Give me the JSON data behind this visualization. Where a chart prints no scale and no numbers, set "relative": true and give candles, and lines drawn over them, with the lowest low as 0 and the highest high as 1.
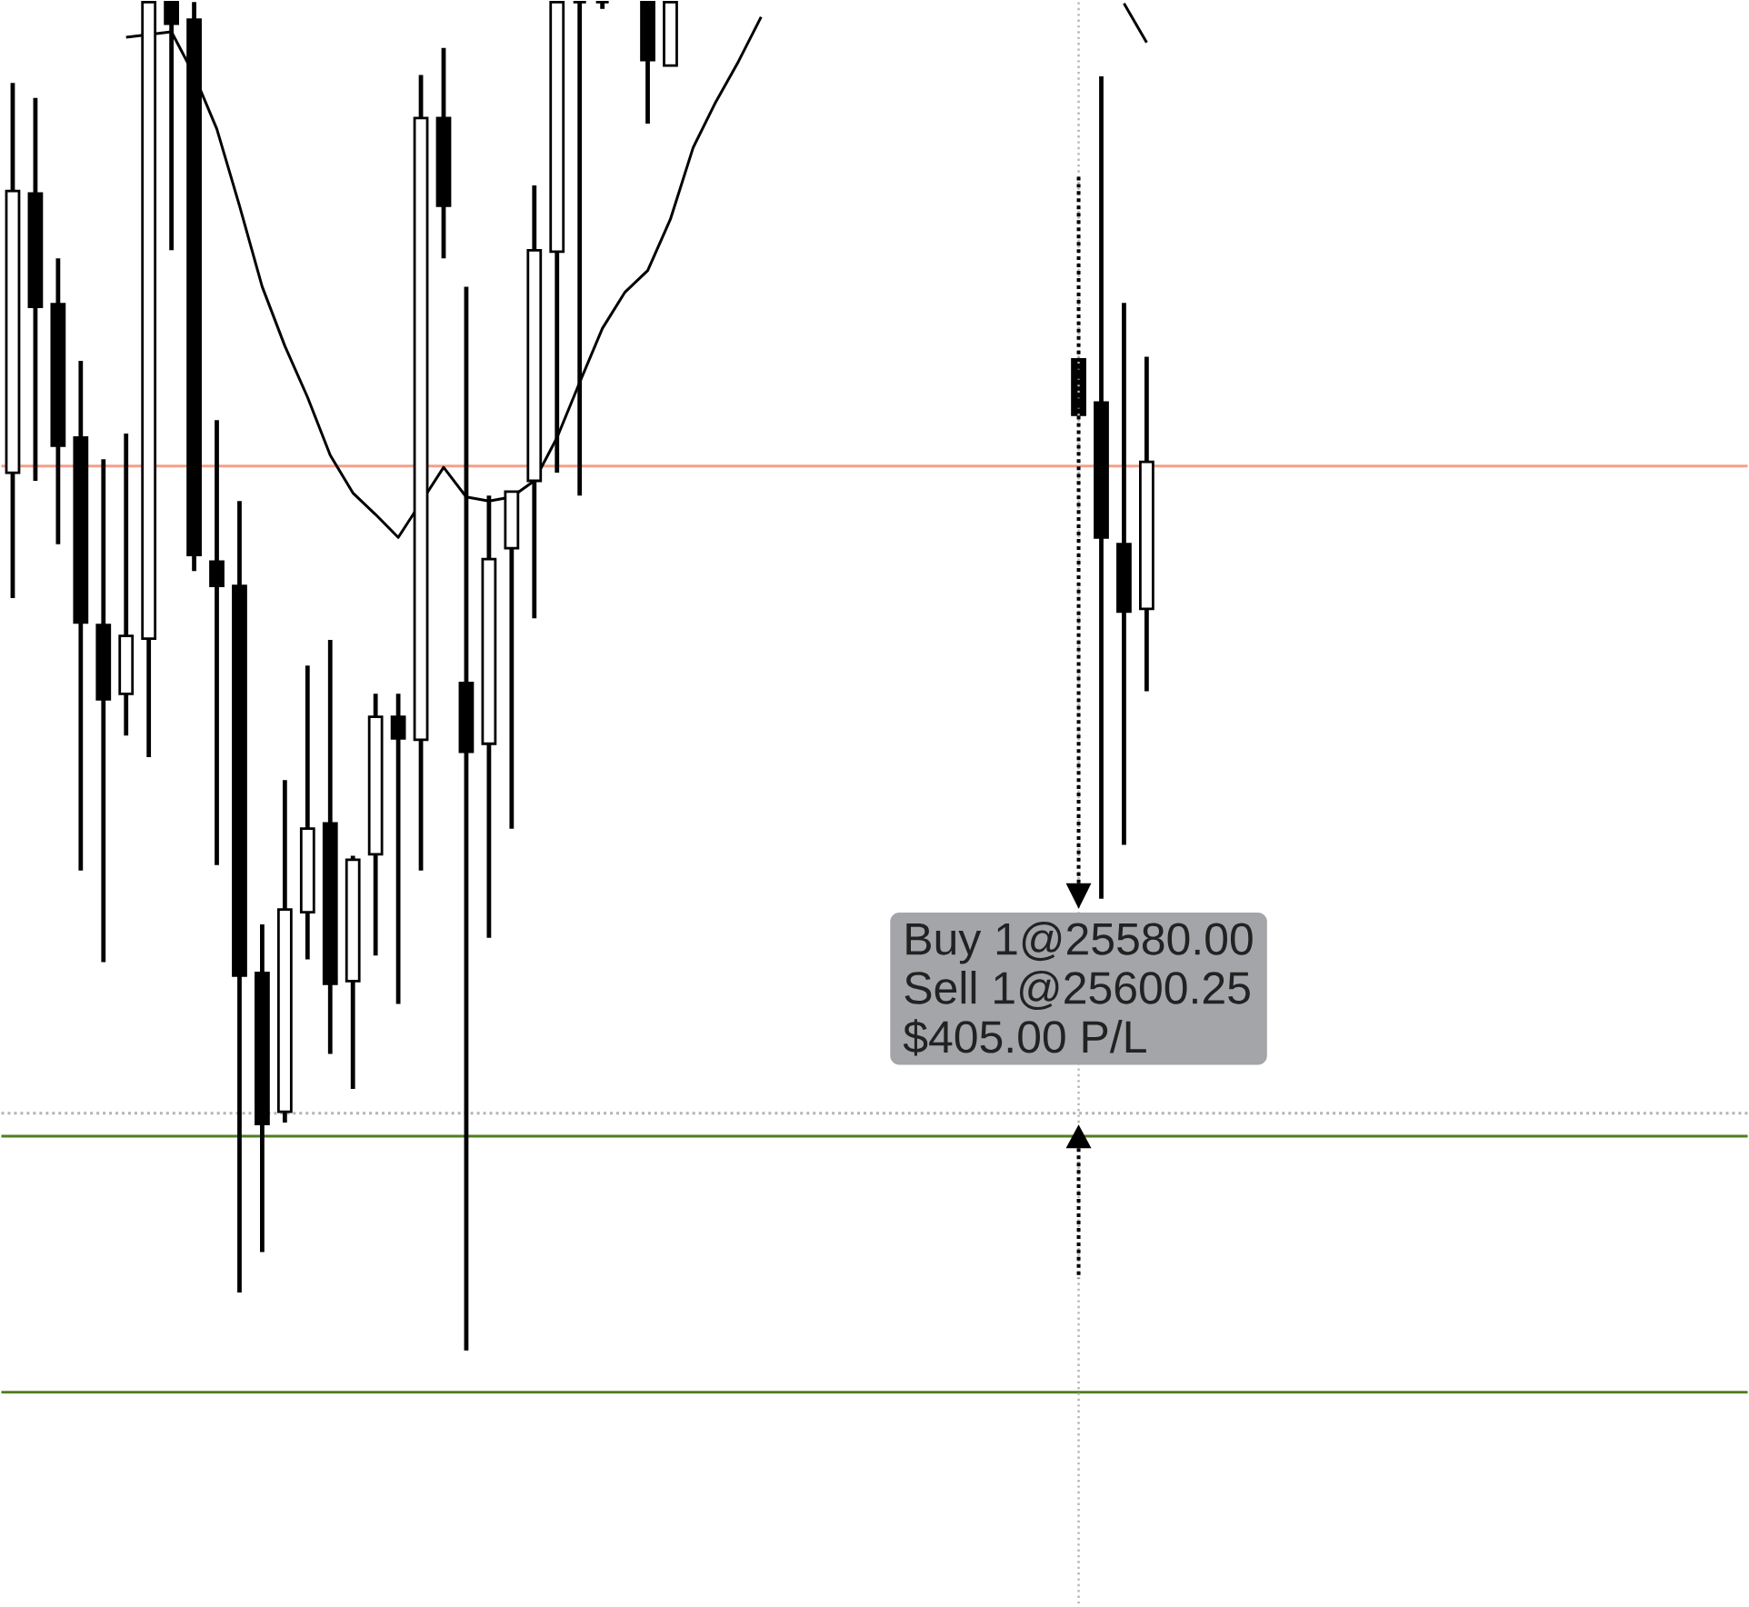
{
  "chart_data": {
    "type": "candlestick",
    "relative": true,
    "categories": [
      null,
      null,
      null,
      null,
      null,
      null,
      null,
      null,
      null,
      null,
      null,
      null,
      null,
      null,
      null,
      null,
      null,
      null,
      null,
      null,
      null,
      null,
      null,
      null,
      null,
      null,
      null,
      null,
      null,
      null,
      null,
      null,
      null,
      null,
      null,
      null,
      null,
      null,
      null,
      null,
      null,
      null,
      null,
      null,
      null,
      null,
      null,
      null,
      null,
      null,
      null,
      null,
      null,
      null,
      null,
      null,
      null,
      null,
      null,
      null,
      null,
      null,
      null,
      null,
      null,
      null,
      null,
      null,
      null,
      null,
      null,
      null,
      null,
      null,
      null,
      null,
      null
    ],
    "ohlc": [
      [
        0.651,
        0.94,
        0.558,
        0.86
      ],
      [
        0.858,
        0.929,
        0.645,
        0.774
      ],
      [
        0.776,
        0.81,
        0.598,
        0.671
      ],
      [
        0.677,
        0.734,
        0.356,
        0.54
      ],
      [
        0.538,
        0.661,
        0.288,
        0.483
      ],
      [
        0.487,
        0.68,
        0.456,
        0.53
      ],
      [
        0.528,
        1,
        0.44,
        1
      ],
      [
        1,
        1,
        0.816,
        0.984
      ],
      [
        0.987,
        1,
        0.578,
        0.59
      ],
      [
        0.585,
        0.69,
        0.36,
        0.567
      ],
      [
        0.567,
        0.63,
        0.043,
        0.278
      ],
      [
        0.28,
        0.316,
        0.073,
        0.168
      ],
      [
        0.177,
        0.423,
        0.169,
        0.327
      ],
      [
        0.325,
        0.508,
        0.29,
        0.387
      ],
      [
        0.391,
        0.527,
        0.22,
        0.272
      ],
      [
        0.274,
        0.367,
        0.194,
        0.364
      ],
      [
        0.368,
        0.487,
        0.293,
        0.47
      ],
      [
        0.47,
        0.487,
        0.257,
        0.454
      ],
      [
        0.453,
        0.946,
        0.356,
        0.914
      ],
      [
        0.914,
        0.966,
        0.81,
        0.849
      ],
      [
        0.495,
        0.789,
        0,
        0.444
      ],
      [
        0.45,
        0.634,
        0.306,
        0.587
      ],
      [
        0.595,
        0.637,
        0.387,
        0.637
      ],
      [
        0.645,
        0.864,
        0.543,
        0.816
      ],
      [
        0.815,
        1,
        0.651,
        1
      ],
      [
        1,
        1,
        0.634,
        1
      ],
      [
        1,
        1,
        0.995,
        1
      ],
      null,
      [
        1,
        1,
        0.91,
        0.957
      ],
      [
        0.953,
        1,
        0.953,
        1
      ],
      null,
      null,
      null,
      null,
      null,
      null,
      null,
      null,
      null,
      null,
      null,
      null,
      null,
      null,
      null,
      null,
      null,
      [
        0.735,
        0.735,
        0.694,
        0.694
      ],
      [
        0.703,
        0.945,
        0.335,
        0.603
      ],
      [
        0.598,
        0.777,
        0.375,
        0.548
      ],
      [
        0.55,
        0.737,
        0.489,
        0.659
      ],
      null,
      null,
      null,
      null,
      null,
      null,
      null,
      null,
      null,
      null,
      null,
      null,
      null,
      null,
      null,
      null,
      null,
      null,
      null,
      null,
      null,
      null,
      null,
      null,
      null,
      null
    ],
    "series": [
      {
        "type": "line",
        "color": "#000000",
        "values": [
          null,
          null,
          null,
          null,
          null,
          0.974,
          0.976,
          0.978,
          0.946,
          0.906,
          0.849,
          0.789,
          0.745,
          0.707,
          0.664,
          0.636,
          0.62,
          0.603,
          0.629,
          0.655,
          0.633,
          0.63,
          0.633,
          0.645,
          0.677,
          0.718,
          0.758,
          0.785,
          0.801,
          0.839,
          0.892,
          0.926,
          0.956,
          0.989,
          null,
          null,
          null,
          null,
          null,
          null,
          null,
          null,
          null,
          null,
          null,
          null,
          null,
          null,
          null,
          0.999,
          0.97,
          null,
          null,
          null,
          null,
          null,
          null,
          null,
          null,
          null,
          null,
          null,
          null,
          null,
          null,
          null,
          null,
          null,
          null,
          null,
          null,
          null,
          null,
          null,
          null,
          null,
          null
        ]
      }
    ],
    "ref_lines": [
      {
        "axis": "y",
        "value": 0.656,
        "color": "#f4a08a"
      },
      {
        "axis": "y",
        "value": 0.176,
        "color": "#b4b4b4",
        "line_style": "dotted"
      },
      {
        "axis": "y",
        "value": 0.159,
        "color": "#4f7f1f"
      },
      {
        "axis": "y",
        "value": -0.031,
        "color": "#4f7f1f"
      }
    ],
    "annotations": [
      "Buy 1@25580.00",
      "Sell 1@25600.25",
      "$405.00 P/L"
    ]
  }
}
